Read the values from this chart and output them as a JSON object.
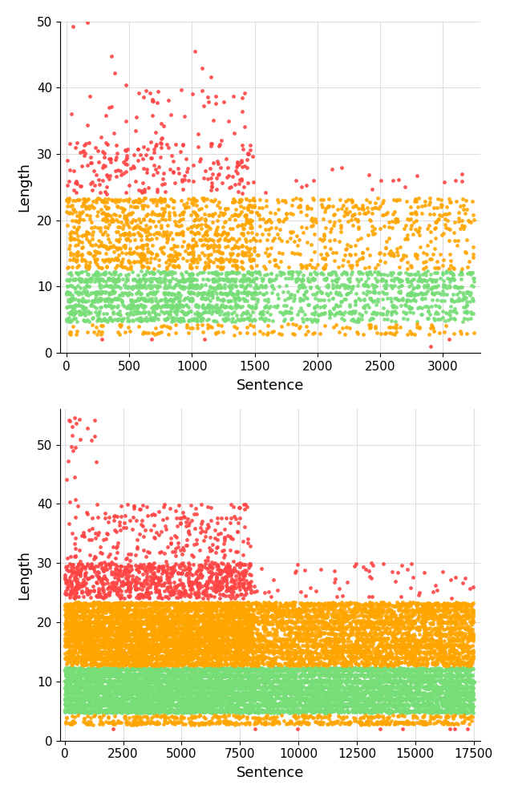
{
  "plot1": {
    "xlabel": "Sentence",
    "ylabel": "Length",
    "xlim": [
      -50,
      3300
    ],
    "ylim": [
      0,
      50
    ],
    "yticks": [
      0,
      10,
      20,
      30,
      40,
      50
    ],
    "xticks": [
      0,
      500,
      1000,
      1500,
      2000,
      2500,
      3000
    ]
  },
  "plot2": {
    "xlabel": "Sentence",
    "ylabel": "Length",
    "xlim": [
      -200,
      17800
    ],
    "ylim": [
      0,
      56
    ],
    "yticks": [
      0,
      10,
      20,
      30,
      40,
      50
    ],
    "xticks": [
      0,
      2500,
      5000,
      7500,
      10000,
      12500,
      15000,
      17500
    ]
  },
  "colors": {
    "green": "#77DD77",
    "orange": "#FFA500",
    "red": "#FF4444",
    "background": "#FFFFFF",
    "grid": "#DDDDDD"
  },
  "marker_size": 12,
  "alpha": 0.9
}
